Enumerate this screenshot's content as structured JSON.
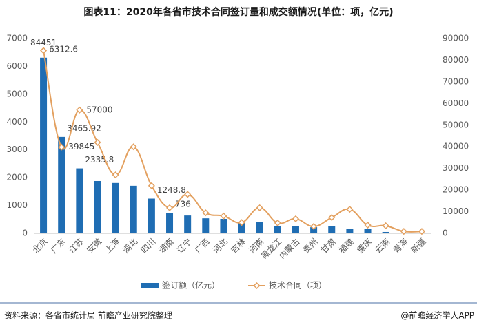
{
  "chart_data": {
    "type": "bar-line",
    "title": "图表11：2020年各省市技术合同签订量和成交额情况(单位：项，亿元)",
    "categories": [
      "北京",
      "广东",
      "江苏",
      "安徽",
      "上海",
      "湖北",
      "四川",
      "湖南",
      "辽宁",
      "广西",
      "河北",
      "吉林",
      "河南",
      "黑龙江",
      "内蒙古",
      "贵州",
      "甘肃",
      "福建",
      "重庆",
      "云南",
      "青海",
      "新疆"
    ],
    "series": [
      {
        "name": "签订额（亿元）",
        "type": "bar",
        "color": "#1f6db3",
        "values": [
          6312.6,
          3465.92,
          2335.8,
          1880,
          1810,
          1710,
          1248.8,
          736,
          640,
          540,
          520,
          370,
          400,
          270,
          270,
          220,
          250,
          170,
          150,
          50,
          5,
          5
        ],
        "value_labels": [
          "6312.6",
          "3465.92",
          "2335.8",
          null,
          null,
          null,
          "1248.8",
          "736",
          null,
          null,
          null,
          null,
          null,
          null,
          null,
          null,
          null,
          null,
          null,
          null,
          null,
          null
        ]
      },
      {
        "name": "技术合同（项）",
        "type": "line",
        "axis": "y2",
        "color": "#e3a05f",
        "values": [
          84451,
          39845,
          57000,
          42000,
          27000,
          40000,
          22000,
          11800,
          18000,
          9500,
          8000,
          5000,
          11800,
          4800,
          6700,
          3200,
          7300,
          11100,
          3800,
          3500,
          900,
          900
        ],
        "value_labels": [
          "84451",
          "39845",
          "57000",
          null,
          null,
          null,
          null,
          null,
          null,
          null,
          null,
          null,
          null,
          null,
          null,
          null,
          null,
          null,
          null,
          null,
          null,
          null
        ]
      }
    ],
    "ylim": [
      0,
      7000
    ],
    "yticks": [
      0,
      1000,
      2000,
      3000,
      4000,
      5000,
      6000,
      7000
    ],
    "y2lim": [
      0,
      90000
    ],
    "y2ticks": [
      0,
      10000,
      20000,
      30000,
      40000,
      50000,
      60000,
      70000,
      80000,
      90000
    ],
    "grid": false,
    "legend": "bottom",
    "source": "资料来源：各省市统计局 前瞻产业研究院整理",
    "credit": "@前瞻经济学人APP"
  }
}
